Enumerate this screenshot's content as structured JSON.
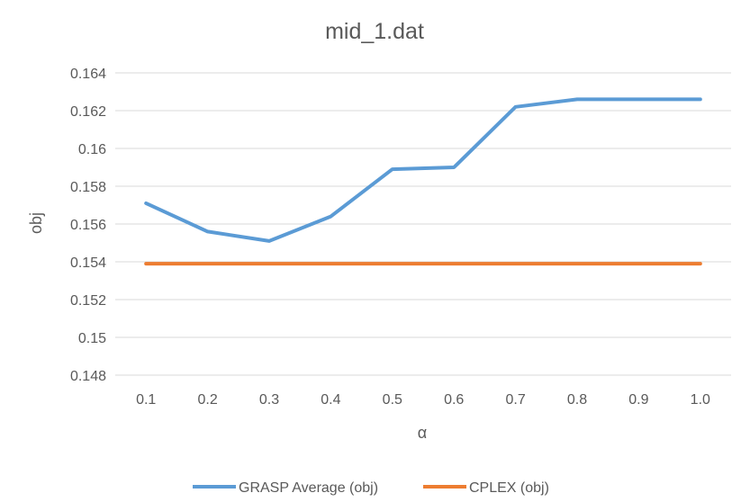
{
  "chart_data": {
    "type": "line",
    "title": "mid_1.dat",
    "xlabel": "α",
    "ylabel": "obj",
    "categories": [
      "0.1",
      "0.2",
      "0.3",
      "0.4",
      "0.5",
      "0.6",
      "0.7",
      "0.8",
      "0.9",
      "1.0"
    ],
    "ylim": [
      0.148,
      0.164
    ],
    "yticks": [
      "0.164",
      "0.162",
      "0.16",
      "0.158",
      "0.156",
      "0.154",
      "0.152",
      "0.15",
      "0.148"
    ],
    "grid": true,
    "legend_position": "bottom",
    "series": [
      {
        "name": "GRASP Average (obj)",
        "color": "#5b9bd5",
        "values": [
          0.1571,
          0.1556,
          0.1551,
          0.1564,
          0.1589,
          0.159,
          0.1622,
          0.1626,
          0.1626,
          0.1626
        ]
      },
      {
        "name": "CPLEX (obj)",
        "color": "#ed7d31",
        "values": [
          0.1539,
          0.1539,
          0.1539,
          0.1539,
          0.1539,
          0.1539,
          0.1539,
          0.1539,
          0.1539,
          0.1539
        ]
      }
    ]
  }
}
